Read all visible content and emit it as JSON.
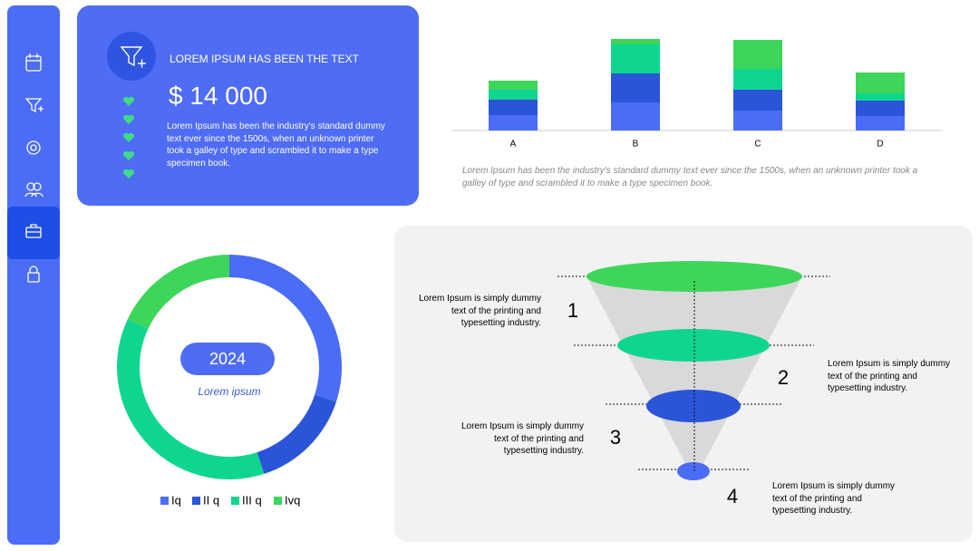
{
  "summary_card": {
    "title": "LOREM IPSUM HAS BEEN THE TEXT",
    "amount": "$ 14 000",
    "description": "Lorem Ipsum has been the industry's standard dummy text ever since the 1500s, when an unknown printer took a galley of type and scrambled it to make a type specimen book."
  },
  "chart_data": [
    {
      "type": "bar",
      "stacked": true,
      "categories": [
        "A",
        "B",
        "C",
        "D"
      ],
      "series": [
        {
          "color": "#4a6cf7",
          "values": [
            17,
            31,
            22,
            16
          ]
        },
        {
          "color": "#2a55d9",
          "values": [
            17,
            32,
            23,
            17
          ]
        },
        {
          "color": "#0fd68f",
          "values": [
            11,
            32,
            23,
            8
          ]
        },
        {
          "color": "#3dd65a",
          "values": [
            10,
            6,
            32,
            23
          ]
        }
      ],
      "caption": "Lorem Ipsum has been the industry's standard dummy text ever since the 1500s, when an unknown printer took a galley of type and scrambled it to make a type specimen book."
    },
    {
      "type": "donut",
      "center_label": "2024",
      "center_subtitle": "Lorem ipsum",
      "categories": [
        "Iq",
        "II q",
        "III q",
        "Ivq"
      ],
      "values": [
        30,
        15,
        37,
        18
      ],
      "colors": [
        "#4a6cf7",
        "#2a55d9",
        "#0fd68f",
        "#3dd65a"
      ]
    }
  ],
  "funnel": {
    "stages": [
      {
        "number": "1",
        "text": "Lorem Ipsum is simply dummy text of the printing and typesetting industry."
      },
      {
        "number": "2",
        "text": "Lorem Ipsum is simply dummy text of the printing and typesetting industry."
      },
      {
        "number": "3",
        "text": "Lorem Ipsum is simply dummy text of the printing and typesetting industry."
      },
      {
        "number": "4",
        "text": "Lorem Ipsum is simply dummy text of the printing and typesetting industry."
      }
    ]
  }
}
